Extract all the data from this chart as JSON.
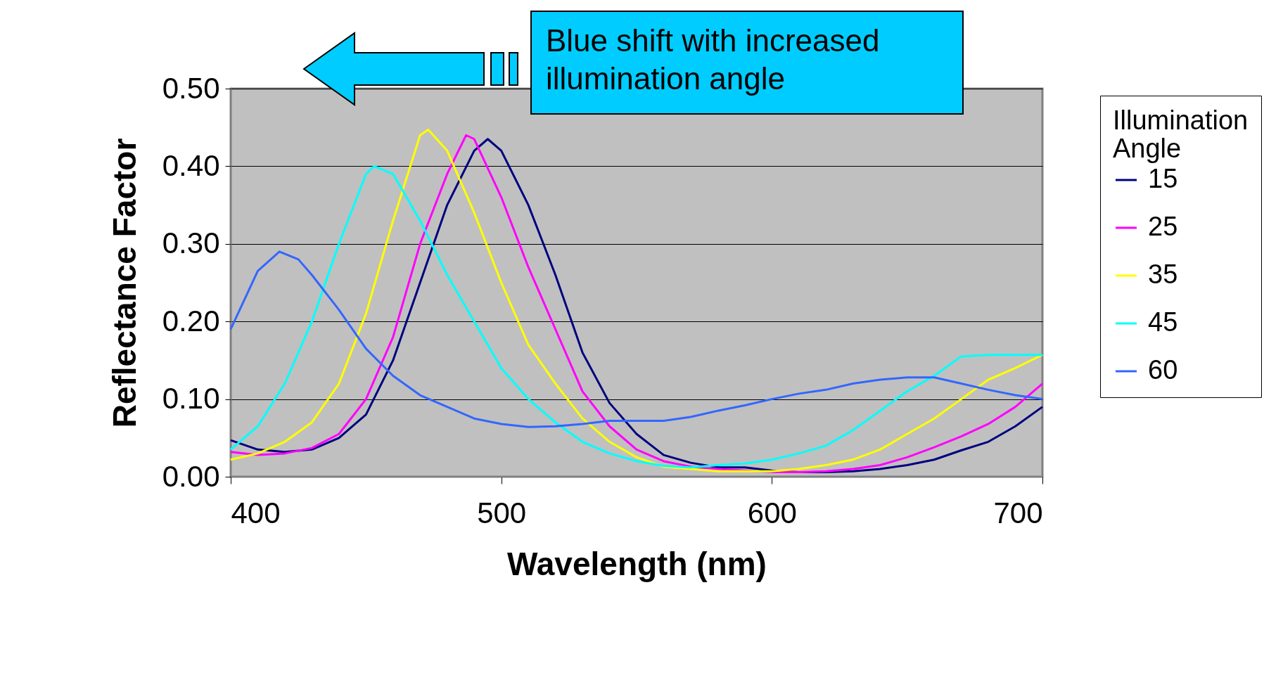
{
  "chart_data": {
    "type": "line",
    "xlabel": "Wavelength (nm)",
    "ylabel": "Reflectance Factor",
    "legend_title": "Illumination Angle",
    "annotations": [
      "Blue shift with increased illumination angle"
    ],
    "xlim": [
      400,
      700
    ],
    "xticks": [
      400,
      500,
      600,
      700
    ],
    "ylim": [
      0,
      0.5
    ],
    "yticks": [
      {
        "value": 0,
        "label": "0.00"
      },
      {
        "value": 0.1,
        "label": "0.10"
      },
      {
        "value": 0.2,
        "label": "0.20"
      },
      {
        "value": 0.3,
        "label": "0.30"
      },
      {
        "value": 0.4,
        "label": "0.40"
      },
      {
        "value": 0.5,
        "label": "0.50"
      }
    ],
    "grid": "y",
    "legend": "right",
    "series": [
      {
        "name": "15",
        "color": "#000080",
        "x": [
          400,
          410,
          420,
          430,
          440,
          450,
          460,
          470,
          480,
          490,
          495,
          500,
          510,
          520,
          530,
          540,
          550,
          560,
          570,
          580,
          590,
          600,
          610,
          620,
          630,
          640,
          650,
          660,
          670,
          680,
          690,
          700
        ],
        "values": [
          0.047,
          0.035,
          0.032,
          0.035,
          0.05,
          0.08,
          0.15,
          0.25,
          0.35,
          0.42,
          0.435,
          0.42,
          0.35,
          0.26,
          0.16,
          0.095,
          0.055,
          0.028,
          0.018,
          0.012,
          0.012,
          0.008,
          0.006,
          0.006,
          0.007,
          0.01,
          0.015,
          0.022,
          0.034,
          0.045,
          0.065,
          0.09
        ]
      },
      {
        "name": "25",
        "color": "#ff00ff",
        "x": [
          400,
          410,
          420,
          430,
          440,
          450,
          460,
          470,
          480,
          487,
          490,
          500,
          510,
          520,
          530,
          540,
          550,
          560,
          570,
          580,
          590,
          600,
          610,
          620,
          630,
          640,
          650,
          660,
          670,
          680,
          690,
          700
        ],
        "values": [
          0.032,
          0.028,
          0.03,
          0.037,
          0.055,
          0.1,
          0.18,
          0.3,
          0.39,
          0.44,
          0.435,
          0.36,
          0.27,
          0.19,
          0.11,
          0.065,
          0.035,
          0.02,
          0.013,
          0.01,
          0.008,
          0.006,
          0.006,
          0.007,
          0.01,
          0.015,
          0.025,
          0.038,
          0.052,
          0.068,
          0.09,
          0.12
        ]
      },
      {
        "name": "35",
        "color": "#ffff00",
        "x": [
          400,
          410,
          420,
          430,
          440,
          450,
          460,
          470,
          473,
          480,
          490,
          500,
          510,
          520,
          530,
          540,
          550,
          560,
          570,
          580,
          590,
          600,
          610,
          620,
          630,
          640,
          650,
          660,
          670,
          680,
          690,
          700
        ],
        "values": [
          0.022,
          0.03,
          0.045,
          0.07,
          0.12,
          0.21,
          0.33,
          0.44,
          0.447,
          0.42,
          0.34,
          0.25,
          0.17,
          0.12,
          0.075,
          0.045,
          0.025,
          0.013,
          0.01,
          0.007,
          0.007,
          0.007,
          0.01,
          0.015,
          0.022,
          0.035,
          0.055,
          0.075,
          0.1,
          0.125,
          0.14,
          0.157
        ]
      },
      {
        "name": "45",
        "color": "#00ffff",
        "x": [
          400,
          410,
          420,
          430,
          440,
          450,
          453,
          460,
          470,
          480,
          490,
          500,
          510,
          520,
          530,
          540,
          550,
          560,
          570,
          580,
          590,
          600,
          610,
          620,
          630,
          640,
          650,
          660,
          670,
          680,
          690,
          700
        ],
        "values": [
          0.035,
          0.065,
          0.12,
          0.2,
          0.3,
          0.39,
          0.4,
          0.39,
          0.33,
          0.26,
          0.2,
          0.14,
          0.1,
          0.07,
          0.045,
          0.03,
          0.02,
          0.014,
          0.012,
          0.015,
          0.017,
          0.022,
          0.03,
          0.04,
          0.06,
          0.085,
          0.11,
          0.13,
          0.155,
          0.157,
          0.157,
          0.157
        ]
      },
      {
        "name": "60",
        "color": "#3366ff",
        "x": [
          400,
          410,
          418,
          425,
          430,
          440,
          450,
          460,
          470,
          480,
          490,
          500,
          510,
          520,
          530,
          540,
          550,
          560,
          570,
          580,
          590,
          600,
          610,
          620,
          630,
          640,
          650,
          660,
          670,
          680,
          690,
          700
        ],
        "values": [
          0.19,
          0.265,
          0.29,
          0.28,
          0.26,
          0.215,
          0.165,
          0.13,
          0.105,
          0.09,
          0.075,
          0.068,
          0.064,
          0.065,
          0.068,
          0.072,
          0.072,
          0.072,
          0.077,
          0.085,
          0.092,
          0.1,
          0.107,
          0.112,
          0.12,
          0.125,
          0.128,
          0.128,
          0.12,
          0.112,
          0.105,
          0.1
        ]
      }
    ]
  }
}
